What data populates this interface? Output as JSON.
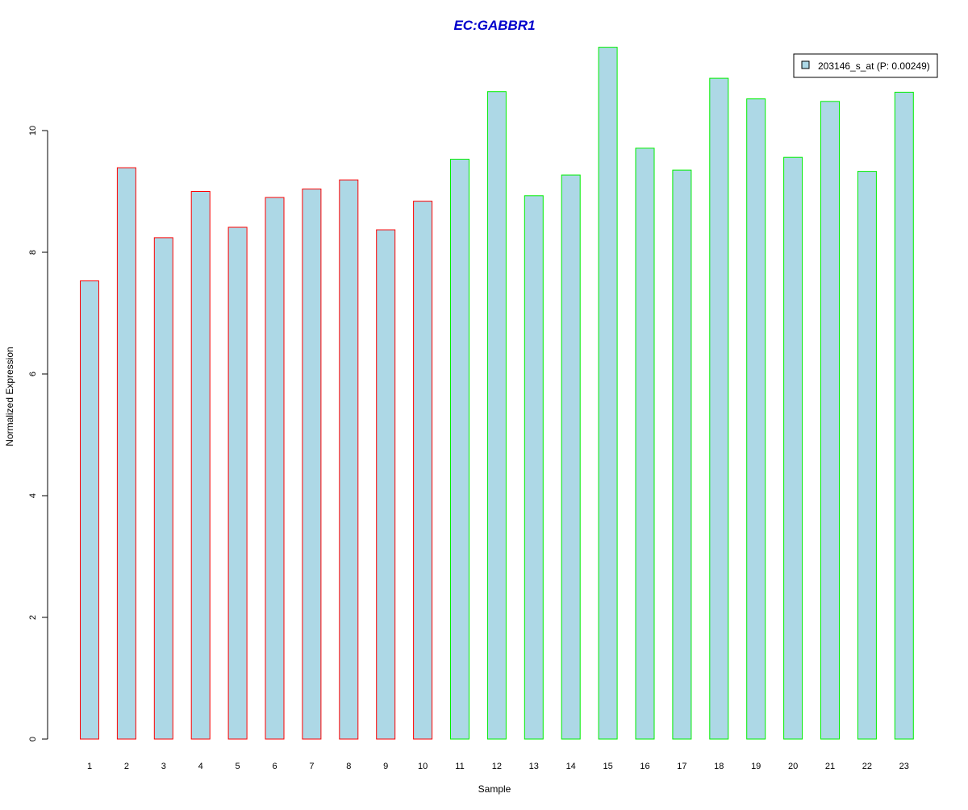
{
  "colors": {
    "title": "#0000cc",
    "bar_fill": "#add8e6",
    "group1_border": "#ff0000",
    "group2_border": "#00ee00",
    "axis": "#000000"
  },
  "chart_data": {
    "type": "bar",
    "title": "EC:GABBR1",
    "xlabel": "Sample",
    "ylabel": "Normalized Expression",
    "ylim": [
      0,
      11.4
    ],
    "yticks": [
      0,
      2,
      4,
      6,
      8,
      10
    ],
    "grid": false,
    "legend_position": "top-right",
    "categories": [
      "1",
      "2",
      "3",
      "4",
      "5",
      "6",
      "7",
      "8",
      "9",
      "10",
      "11",
      "12",
      "13",
      "14",
      "15",
      "16",
      "17",
      "18",
      "19",
      "20",
      "21",
      "22",
      "23"
    ],
    "series": [
      {
        "name": "203146_s_at (P: 0.00249)",
        "values": [
          7.53,
          9.39,
          8.24,
          9.0,
          8.41,
          8.9,
          9.04,
          9.19,
          8.37,
          8.84,
          9.53,
          10.64,
          8.93,
          9.27,
          11.37,
          9.71,
          9.35,
          10.86,
          10.52,
          9.56,
          10.48,
          9.33,
          10.63
        ]
      }
    ],
    "bar_groups": [
      "group1",
      "group1",
      "group1",
      "group1",
      "group1",
      "group1",
      "group1",
      "group1",
      "group1",
      "group1",
      "group2",
      "group2",
      "group2",
      "group2",
      "group2",
      "group2",
      "group2",
      "group2",
      "group2",
      "group2",
      "group2",
      "group2",
      "group2"
    ]
  }
}
